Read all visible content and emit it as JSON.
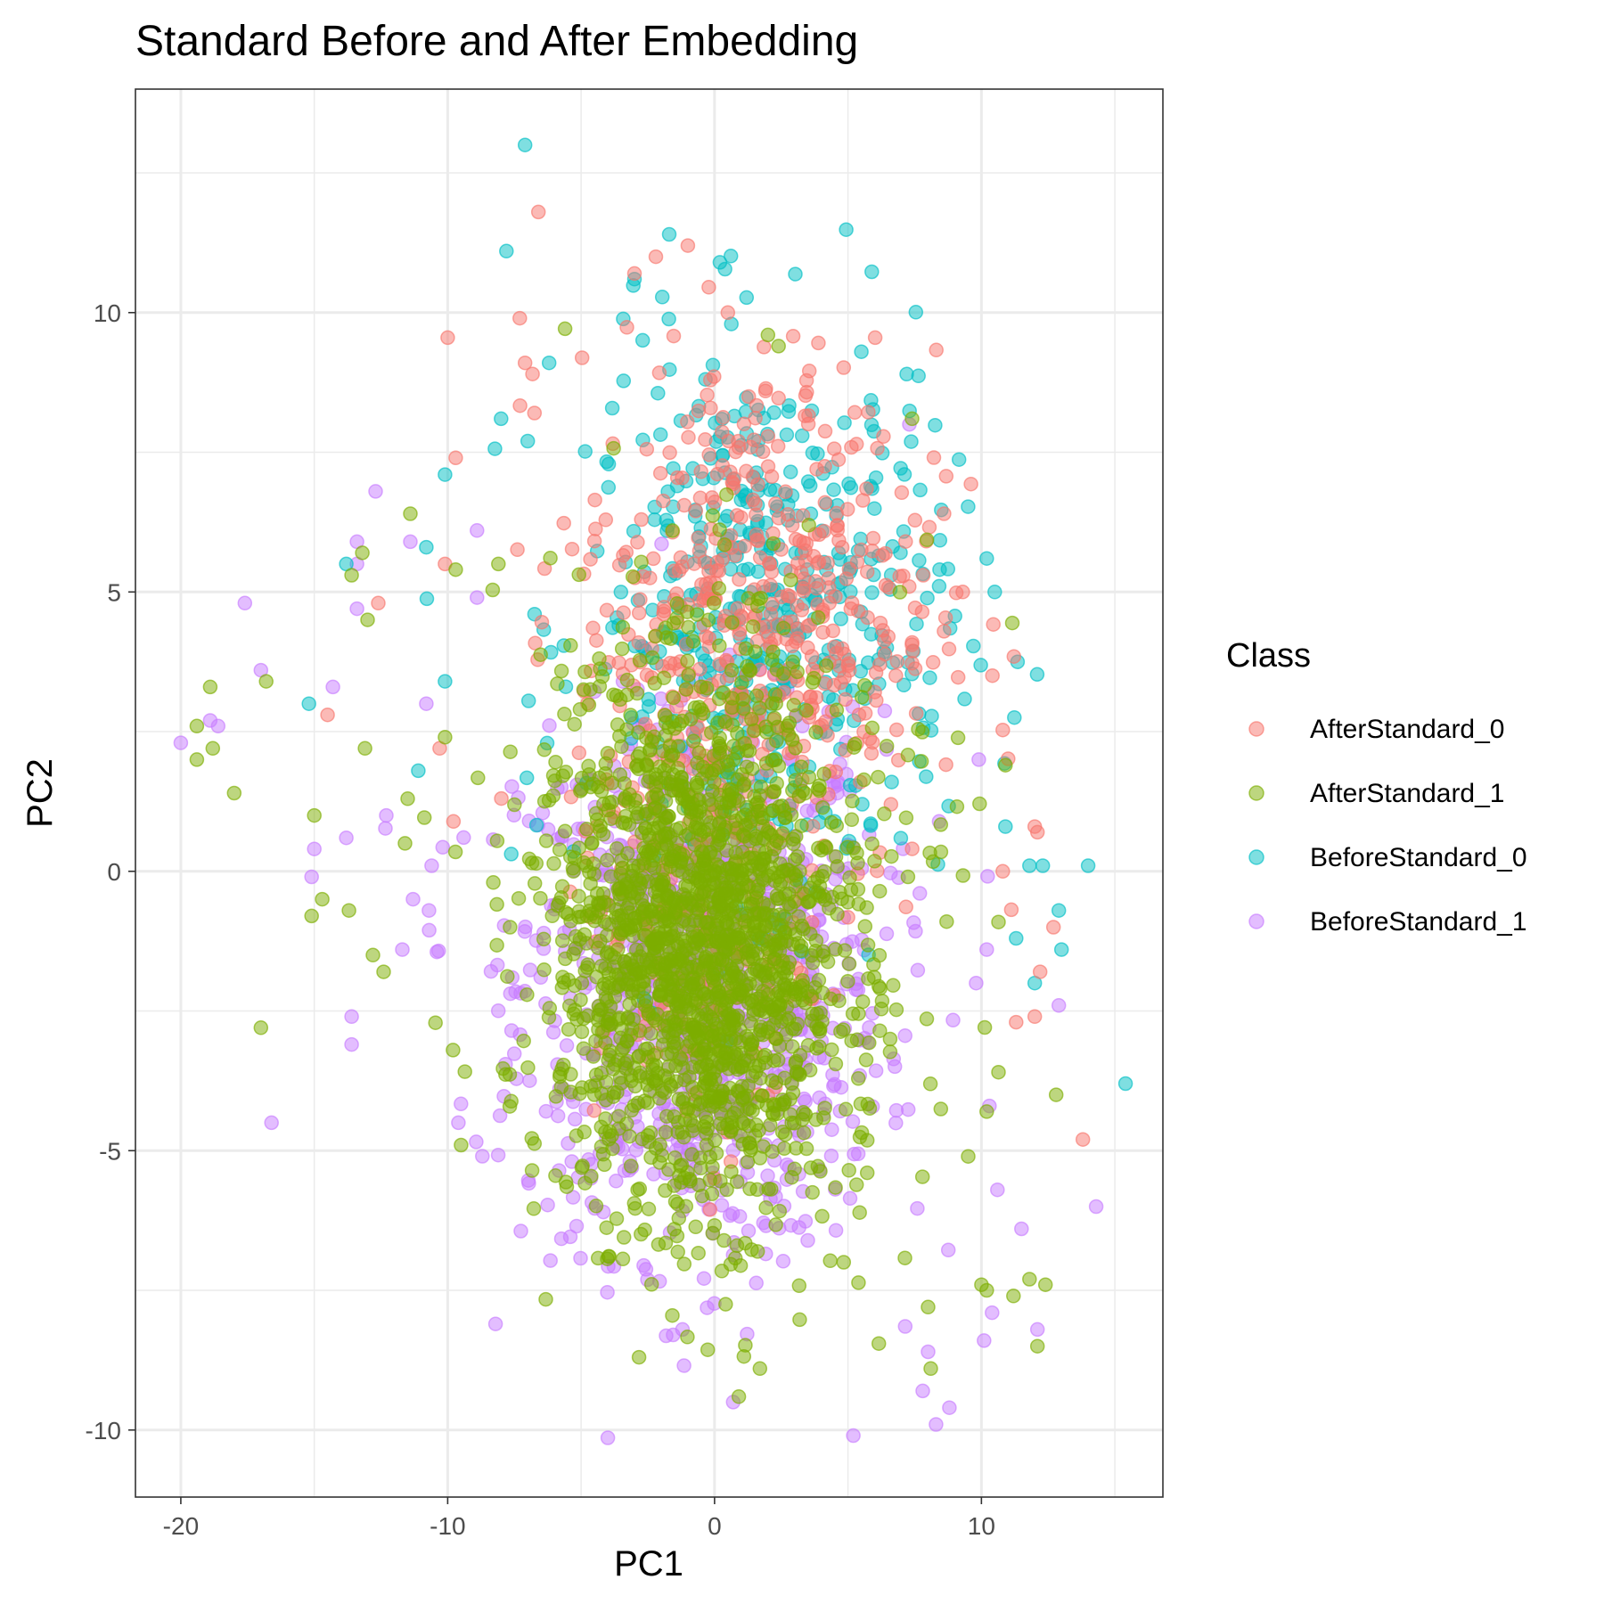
{
  "chart_data": {
    "type": "scatter",
    "title": "Standard Before and After Embedding",
    "xlabel": "PC1",
    "ylabel": "PC2",
    "xlim": [
      -21.7,
      16.8
    ],
    "ylim": [
      -11.2,
      14.0
    ],
    "x_ticks": [
      -20,
      -10,
      0,
      10
    ],
    "y_ticks": [
      -10,
      -5,
      0,
      5,
      10
    ],
    "x_tick_labels": [
      "-20",
      "-10",
      "0",
      "10"
    ],
    "y_tick_labels": [
      "-10",
      "-5",
      "0",
      "5",
      "10"
    ],
    "grid": true,
    "legend": {
      "title": "Class",
      "position": "right"
    },
    "series": [
      {
        "name": "AfterStandard_0",
        "color": "#F8766D",
        "clusters": [
          {
            "cx": 1.5,
            "cy": 4.5,
            "sx": 3.4,
            "sy": 2.4,
            "n": 520
          },
          {
            "cx": -0.5,
            "cy": -1.0,
            "sx": 2.0,
            "sy": 2.0,
            "n": 140
          }
        ],
        "points": [
          [
            -6.6,
            11.8
          ],
          [
            -7.3,
            9.9
          ],
          [
            -7.1,
            9.1
          ],
          [
            -2.2,
            11.0
          ],
          [
            -1.0,
            11.2
          ],
          [
            -3.0,
            10.7
          ],
          [
            0.5,
            10.0
          ],
          [
            -9.7,
            7.4
          ],
          [
            -10.1,
            5.5
          ],
          [
            -12.6,
            4.8
          ],
          [
            -14.5,
            2.8
          ],
          [
            -10.3,
            2.2
          ],
          [
            13.8,
            -4.8
          ],
          [
            12.2,
            -1.8
          ],
          [
            12.0,
            -2.6
          ],
          [
            11.3,
            -2.7
          ],
          [
            12.0,
            0.8
          ],
          [
            12.1,
            0.7
          ],
          [
            10.8,
            0.0
          ],
          [
            12.7,
            -1.0
          ],
          [
            9.3,
            5.0
          ],
          [
            8.6,
            6.4
          ]
        ]
      },
      {
        "name": "AfterStandard_1",
        "color": "#7CAE00",
        "clusters": [
          {
            "cx": -0.5,
            "cy": -1.5,
            "sx": 2.6,
            "sy": 2.3,
            "n": 1600
          },
          {
            "cx": 0.0,
            "cy": 0.0,
            "sx": 4.5,
            "sy": 3.2,
            "n": 320
          }
        ],
        "points": [
          [
            -19.4,
            2.6
          ],
          [
            -19.4,
            2.0
          ],
          [
            -18.9,
            3.3
          ],
          [
            -18.8,
            2.2
          ],
          [
            -18.0,
            1.4
          ],
          [
            -16.8,
            3.4
          ],
          [
            -17.0,
            -2.8
          ],
          [
            -15.0,
            1.0
          ],
          [
            -15.1,
            -0.8
          ],
          [
            -14.7,
            -0.5
          ],
          [
            -13.6,
            5.3
          ],
          [
            -13.2,
            5.7
          ],
          [
            -13.0,
            4.5
          ],
          [
            -13.1,
            2.2
          ],
          [
            -13.7,
            -0.7
          ],
          [
            -12.4,
            -1.8
          ],
          [
            -12.8,
            -1.5
          ],
          [
            -11.4,
            6.4
          ],
          [
            -11.6,
            0.5
          ],
          [
            -11.5,
            1.3
          ],
          [
            -10.1,
            2.4
          ],
          [
            -9.7,
            5.4
          ],
          [
            -9.8,
            -3.2
          ],
          [
            -9.5,
            -4.9
          ],
          [
            -8.1,
            5.5
          ],
          [
            1.7,
            -8.9
          ],
          [
            2.0,
            9.6
          ],
          [
            2.4,
            9.4
          ],
          [
            7.4,
            8.1
          ],
          [
            8.0,
            -7.8
          ],
          [
            8.1,
            -8.9
          ],
          [
            10.0,
            -7.4
          ],
          [
            10.2,
            -7.5
          ],
          [
            11.2,
            -7.6
          ],
          [
            11.8,
            -7.3
          ],
          [
            12.1,
            -8.5
          ],
          [
            12.4,
            -7.4
          ],
          [
            12.8,
            -4.0
          ],
          [
            10.9,
            1.9
          ],
          [
            10.2,
            -4.3
          ]
        ]
      },
      {
        "name": "BeforeStandard_0",
        "color": "#00BFC4",
        "clusters": [
          {
            "cx": 2.0,
            "cy": 4.5,
            "sx": 3.4,
            "sy": 2.4,
            "n": 480
          }
        ],
        "points": [
          [
            -7.1,
            13.0
          ],
          [
            -7.8,
            11.1
          ],
          [
            -1.7,
            11.4
          ],
          [
            0.2,
            10.9
          ],
          [
            -3.0,
            10.6
          ],
          [
            -6.2,
            9.1
          ],
          [
            -8.0,
            8.1
          ],
          [
            -7.0,
            7.7
          ],
          [
            -10.1,
            7.1
          ],
          [
            -10.8,
            5.8
          ],
          [
            -13.8,
            5.5
          ],
          [
            -15.2,
            3.0
          ],
          [
            -11.1,
            1.8
          ],
          [
            -10.1,
            3.4
          ],
          [
            10.2,
            5.6
          ],
          [
            10.5,
            5.0
          ],
          [
            12.3,
            0.1
          ],
          [
            11.8,
            0.1
          ],
          [
            14.0,
            0.1
          ],
          [
            12.9,
            -0.7
          ],
          [
            11.3,
            -1.2
          ],
          [
            12.0,
            -2.0
          ],
          [
            13.0,
            -1.4
          ],
          [
            15.4,
            -3.8
          ],
          [
            10.9,
            0.8
          ],
          [
            7.2,
            8.9
          ],
          [
            5.5,
            9.3
          ]
        ]
      },
      {
        "name": "BeforeStandard_1",
        "color": "#C77CFF",
        "clusters": [
          {
            "cx": -0.5,
            "cy": -2.0,
            "sx": 3.4,
            "sy": 2.4,
            "n": 1000
          }
        ],
        "points": [
          [
            -20.0,
            2.3
          ],
          [
            -18.9,
            2.7
          ],
          [
            -18.6,
            2.6
          ],
          [
            -17.6,
            4.8
          ],
          [
            -17.0,
            3.6
          ],
          [
            -16.6,
            -4.5
          ],
          [
            -14.3,
            3.3
          ],
          [
            -15.1,
            -0.1
          ],
          [
            -15.0,
            0.4
          ],
          [
            -13.8,
            0.6
          ],
          [
            -13.4,
            5.9
          ],
          [
            -13.4,
            5.5
          ],
          [
            -13.4,
            4.7
          ],
          [
            -13.6,
            -2.6
          ],
          [
            -13.6,
            -3.1
          ],
          [
            -12.7,
            6.8
          ],
          [
            -12.3,
            1.0
          ],
          [
            -11.7,
            -1.4
          ],
          [
            -11.3,
            -0.5
          ],
          [
            -11.4,
            5.9
          ],
          [
            -10.8,
            3.0
          ],
          [
            -10.6,
            0.1
          ],
          [
            -10.7,
            -0.7
          ],
          [
            -9.6,
            -4.5
          ],
          [
            -8.9,
            6.1
          ],
          [
            -8.9,
            4.9
          ],
          [
            -8.7,
            -5.1
          ],
          [
            -1.2,
            -8.2
          ],
          [
            0.7,
            -9.5
          ],
          [
            5.2,
            -10.1
          ],
          [
            7.8,
            -9.3
          ],
          [
            8.0,
            -8.6
          ],
          [
            8.3,
            -9.9
          ],
          [
            8.8,
            -9.6
          ],
          [
            10.1,
            -8.4
          ],
          [
            10.4,
            -7.9
          ],
          [
            10.3,
            -4.2
          ],
          [
            10.6,
            -5.7
          ],
          [
            11.5,
            -6.4
          ],
          [
            12.1,
            -8.2
          ],
          [
            14.3,
            -6.0
          ],
          [
            12.9,
            -2.4
          ],
          [
            10.2,
            -1.4
          ],
          [
            9.9,
            2.0
          ],
          [
            9.8,
            -2.0
          ],
          [
            7.3,
            8.0
          ]
        ]
      }
    ]
  }
}
